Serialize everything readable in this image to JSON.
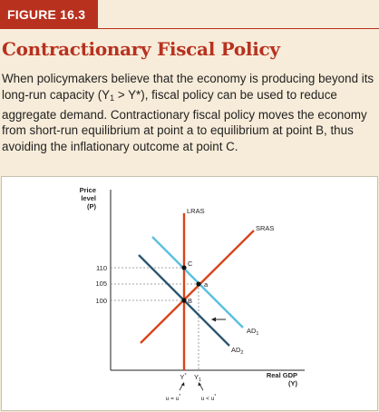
{
  "figure_tag": "FIGURE 16.3",
  "title": "Contractionary Fiscal Policy",
  "caption": {
    "part1": "When policymakers believe that the economy is producing beyond its long-run capacity (Y",
    "sub1": "1",
    "part2": " > Y*), fiscal policy can be used to reduce aggregate demand. Contractionary fiscal policy moves the economy from short-run equilibrium at point a to equilibrium at point B, thus avoiding the inflationary outcome at point C."
  },
  "diagram": {
    "y_axis_label": [
      "Price",
      "level",
      "(P)"
    ],
    "x_axis_label": [
      "Real GDP",
      "(Y)"
    ],
    "price_levels": [
      "110",
      "105",
      "100"
    ],
    "curves": {
      "lras": "LRAS",
      "sras": "SRAS",
      "ad1": "AD",
      "ad1_sub": "1",
      "ad2": "AD",
      "ad2_sub": "2"
    },
    "points": {
      "a": "a",
      "B": "B",
      "C": "C"
    },
    "x_ticks": {
      "ystar": "Y",
      "ystar_sup": "*",
      "y1": "Y",
      "y1_sub": "1",
      "u_eq": "u = u",
      "u_eq_sup": "*",
      "u_lt": "u < u",
      "u_lt_sup": "*"
    },
    "colors": {
      "lras": "#d9441a",
      "sras": "#d9441a",
      "ad1": "#5bbfe0",
      "ad2": "#2c5870",
      "title": "#b8311f",
      "background": "#f7ecd9"
    }
  }
}
